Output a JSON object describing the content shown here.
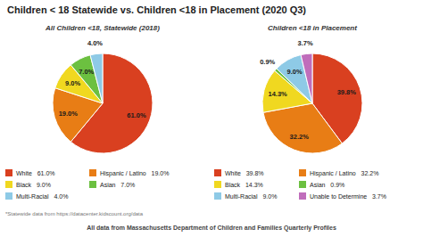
{
  "title": "Children < 18 Statewide vs. Children <18 in Placement (2020 Q3)",
  "footnotes": [
    "*Statewide data from https://datacenter.kidscount.org/data",
    "All data from Massachusetts Department of Children and Families Quarterly Profiles"
  ],
  "chart_data": [
    {
      "type": "pie",
      "title": "All Children <18, Statewide (2018)",
      "categories": [
        "White   61.0%",
        "Hispanic / Latino   19.0%",
        "Black   9.0%",
        "Asian   7.0%",
        "Multi-Racial   4.0%"
      ],
      "values": [
        61.0,
        19.0,
        9.0,
        7.0,
        4.0
      ],
      "value_labels": [
        "61.0%",
        "19.0%",
        "9.0%",
        "7.0%",
        "4.0%"
      ],
      "colors": [
        "#d94020",
        "#e87d15",
        "#f0d820",
        "#6cc040",
        "#8ecae6"
      ],
      "data_labels": true
    },
    {
      "type": "pie",
      "title": "Children <18 in Placement",
      "categories": [
        "White   39.8%",
        "Hispanic / Latino   32.2%",
        "Black   14.3%",
        "Asian   0.9%",
        "Multi-Racial   9.0%",
        "Unable to Determine   3.7%"
      ],
      "values": [
        39.8,
        32.2,
        14.3,
        0.9,
        9.0,
        3.7
      ],
      "value_labels": [
        "39.8%",
        "32.2%",
        "14.3%",
        "0.9%",
        "9.0%",
        "3.7%"
      ],
      "colors": [
        "#d94020",
        "#e87d15",
        "#f0d820",
        "#6cc040",
        "#8ecae6",
        "#c06dbb"
      ],
      "data_labels": true
    }
  ]
}
